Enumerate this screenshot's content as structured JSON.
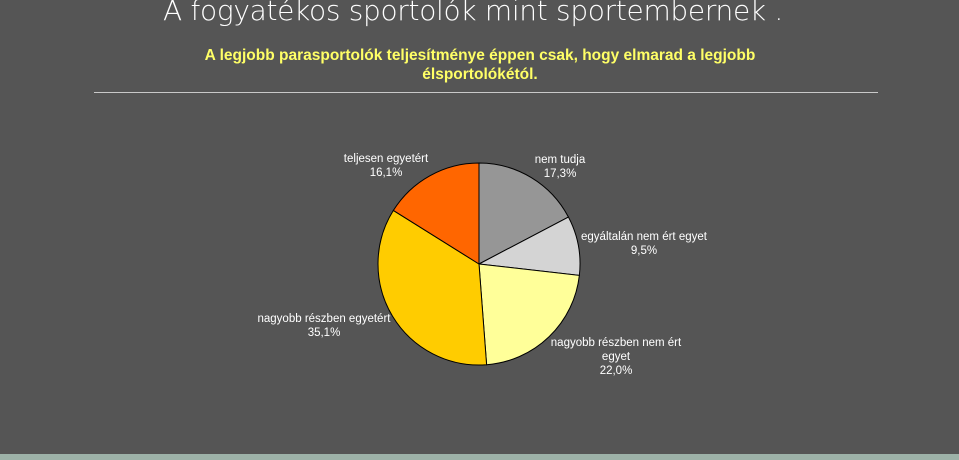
{
  "slide": {
    "title": "A fogyatékos sportolók mint  sportembernek ."
  },
  "chart_data": {
    "type": "pie",
    "title": "A legjobb parasportolók teljesítménye éppen csak, hogy elmarad a legjobb élsportolókétól.",
    "slices": [
      {
        "label": "nem tudja",
        "value": 17.3,
        "display": "17,3%",
        "color": "#969696"
      },
      {
        "label": "egyáltalán nem ért egyet",
        "value": 9.5,
        "display": "9,5%",
        "color": "#d4d4d4"
      },
      {
        "label": "nagyobb részben nem ért egyet",
        "value": 22.0,
        "display": "22,0%",
        "color": "#ffff99"
      },
      {
        "label": "nagyobb részben egyetért",
        "value": 35.1,
        "display": "35,1%",
        "color": "#ffcc00"
      },
      {
        "label": "teljesen egyetért",
        "value": 16.1,
        "display": "16,1%",
        "color": "#ff6600"
      }
    ]
  }
}
